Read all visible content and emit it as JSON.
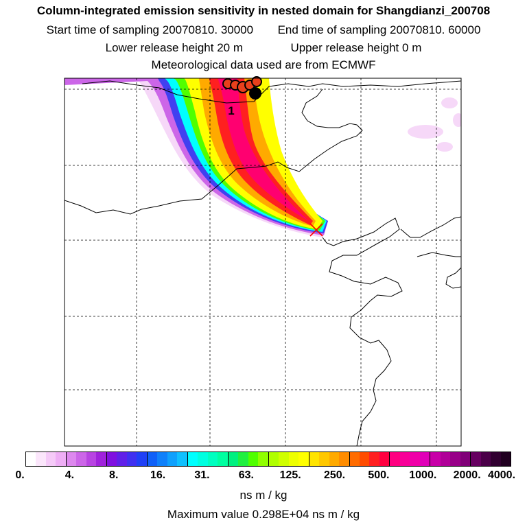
{
  "title": "Column-integrated emission sensitivity in nested domain for Shangdianzi_200708",
  "sampling": {
    "start_label": "Start time of sampling",
    "start_value": "20070810. 30000",
    "end_label": "End time of sampling",
    "end_value": "20070810. 60000"
  },
  "release": {
    "lower_label": "Lower release height",
    "lower_value": "20 m",
    "upper_label": "Upper release height",
    "upper_value": "0 m"
  },
  "meteo": "Meteorological data used are from ECMWF",
  "map": {
    "plume_label": "1",
    "colors": {
      "frame": "#000000",
      "grid": "#000000",
      "coast": "#000000",
      "receptor_marker": "#ff0000",
      "trajectory_dot": "#000000",
      "trajectory_dot_fill": "#e8401c"
    }
  },
  "colorbar": {
    "tick_labels": [
      "0.",
      "4.",
      "8.",
      "16.",
      "31.",
      "63.",
      "125.",
      "250.",
      "500.",
      "1000.",
      "2000.",
      "4000."
    ],
    "colors": [
      "#ffffff",
      "#fbe6fb",
      "#f5caf8",
      "#eeaef5",
      "#dd88ee",
      "#cc66e8",
      "#b844e2",
      "#a022dc",
      "#8010e0",
      "#6020e8",
      "#4030f0",
      "#2040f6",
      "#1060f8",
      "#1080fa",
      "#10a0fc",
      "#10c0fe",
      "#00ffff",
      "#00ffe0",
      "#00ffc0",
      "#00ffa0",
      "#00f080",
      "#20f040",
      "#50ff00",
      "#90ff00",
      "#b0ff00",
      "#d0ff00",
      "#eeff00",
      "#ffff00",
      "#ffe400",
      "#ffc800",
      "#ffaa00",
      "#ff8c00",
      "#ff6c00",
      "#ff4c00",
      "#ff2020",
      "#ff0040",
      "#ff0080",
      "#f80098",
      "#f000a8",
      "#e000b8",
      "#c800a8",
      "#b00098",
      "#980088",
      "#800078",
      "#660060",
      "#4a0048",
      "#300030",
      "#200020"
    ],
    "units": "ns m / kg"
  },
  "max_value": "Maximum value  0.298E+04 ns m / kg"
}
